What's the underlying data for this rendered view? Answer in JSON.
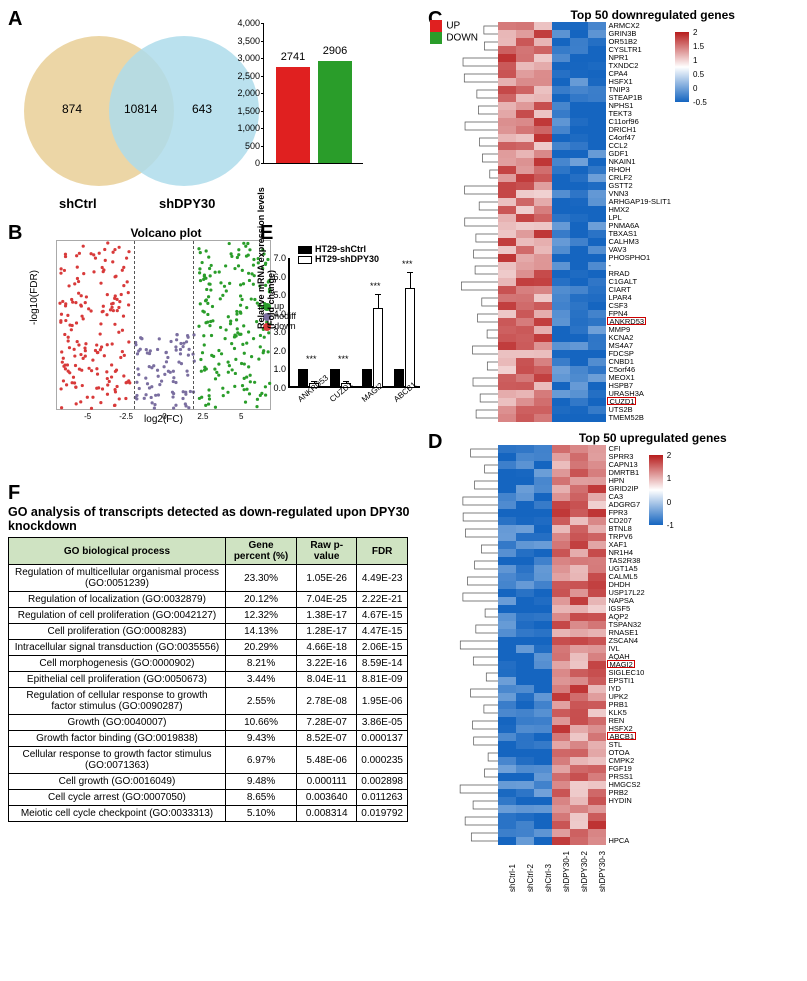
{
  "panelA": {
    "label": "A",
    "venn": {
      "left_only": 874,
      "overlap": 10814,
      "right_only": 643,
      "left_name": "shCtrl",
      "right_name": "shDPY30",
      "left_color": "#e9cf97",
      "right_color": "#aedceb"
    },
    "barchart": {
      "up_label": "UP",
      "down_label": "DOWN",
      "up_value": 2741,
      "down_value": 2906,
      "up_color": "#e02020",
      "down_color": "#2a9d2a",
      "yticks": [
        0,
        500,
        1000,
        1500,
        2000,
        2500,
        3000,
        3500,
        4000
      ],
      "ymax": 4000
    }
  },
  "panelB": {
    "label": "B",
    "title": "Volcano plot",
    "xlabel": "log2(FC)",
    "ylabel": "-log10(FDR)",
    "legend": {
      "up": "up",
      "nodiff": "nodiff",
      "down": "down"
    },
    "colors": {
      "up": "#2a9d2a",
      "nodiff": "#7b6fa0",
      "down": "#d83a3a"
    },
    "xlim": [
      -7,
      7
    ],
    "ylim": [
      0,
      300
    ],
    "fc_threshold": 1.0
  },
  "panelE": {
    "label": "E",
    "ylabel": "Relative mRNA expression levels\n(Fold change)",
    "legend": {
      "ctrl": "HT29-shCtrl",
      "sh": "HT29-shDPY30"
    },
    "genes": [
      "ANKRD53",
      "CUZD1",
      "MAGI2",
      "ABCB1"
    ],
    "ctrl_values": [
      1.0,
      1.0,
      1.0,
      1.0
    ],
    "sh_values": [
      0.25,
      0.25,
      4.3,
      5.4
    ],
    "sh_err": [
      0.08,
      0.08,
      0.7,
      0.8
    ],
    "stars": [
      "***",
      "***",
      "***",
      "***"
    ],
    "yticks": [
      0,
      1,
      2,
      3,
      4,
      5,
      6,
      7
    ],
    "ymax": 7.0
  },
  "panelC": {
    "label": "C",
    "title": "Top 50 downregulated genes",
    "samples": [
      "shCtrl-1",
      "shCtrl-2",
      "shCtrl-3",
      "shDPY30-1",
      "shDPY30-2",
      "shDPY30-3"
    ],
    "genes": [
      "ARMCX2",
      "GRIN3B",
      "OR51B2",
      "CYSLTR1",
      "NPR1",
      "TXNDC2",
      "CPA4",
      "HSFX1",
      "TNIP3",
      "STEAP1B",
      "NPHS1",
      "TEKT3",
      "C11orf96",
      "DRICH1",
      "C4orf47",
      "CCL2",
      "GDF1",
      "NKAIN1",
      "RHOH",
      "CRLF2",
      "GSTT2",
      "VNN3",
      "ARHGAP19-SLIT1",
      "HMX2",
      "LPL",
      "PNMA6A",
      "TBXAS1",
      "CALHM3",
      "VAV3",
      "PHOSPHO1",
      "-",
      "RRAD",
      "C1GALT",
      "CIART",
      "LPAR4",
      "CSF3",
      "FPN4",
      "ANKRD53",
      "MMP9",
      "KCNA2",
      "MS4A7",
      "FDCSP",
      "CNBD1",
      "C5orf46",
      "MEOX1",
      "HSPB7",
      "URASH3A",
      "CUZD1",
      "UTS2B",
      "TMEM52B"
    ],
    "boxed_genes": [
      "ANKRD53",
      "CUZD1"
    ],
    "colorbar": {
      "max": 2,
      "ticks": [
        2,
        1.5,
        1,
        0.5,
        0,
        -0.5
      ],
      "min_color": "#1565c0",
      "mid_color": "#ffffff",
      "max_color": "#b71c1c"
    }
  },
  "panelD": {
    "label": "D",
    "title": "Top 50 upregulated genes",
    "samples": [
      "shCtrl-1",
      "shCtrl-2",
      "shCtrl-3",
      "shDPY30-1",
      "shDPY30-2",
      "shDPY30-3"
    ],
    "genes": [
      "CFI",
      "SPRR3",
      "CAPN13",
      "DMRTB1",
      "HPN",
      "GRID2IP",
      "CA3",
      "ADGRG7",
      "FPR3",
      "CD207",
      "BTNL8",
      "TRPV6",
      "XAF1",
      "NR1H4",
      "TAS2R38",
      "UGT1A5",
      "CALML5",
      "DHDH",
      "USP17L22",
      "NAPSA",
      "IGSF5",
      "AQP2",
      "TSPAN32",
      "RNASE1",
      "ZSCAN4",
      "IVL",
      "AQAH",
      "MAGI2",
      "SIGLEC10",
      "EPSTI1",
      "IYD",
      "UPK2",
      "PRB1",
      "KLK5",
      "REN",
      "HSFX2",
      "ABCB1",
      "STL",
      "OTOA",
      "CMPK2",
      "FGF19",
      "PRSS1",
      "HMGCS2",
      "PRB2",
      "HYDIN",
      "",
      "",
      "",
      "",
      "HPCA"
    ],
    "boxed_genes": [
      "MAGI2",
      "ABCB1"
    ],
    "colorbar": {
      "max": 2,
      "ticks": [
        2,
        1,
        0,
        -1
      ],
      "min_color": "#1565c0",
      "mid_color": "#ffffff",
      "max_color": "#b71c1c"
    }
  },
  "panelF": {
    "label": "F",
    "title": "GO analysis of transcripts detected as down-regulated upon DPY30 knockdown",
    "columns": [
      "GO biological process",
      "Gene percent (%)",
      "Raw p-value",
      "FDR"
    ],
    "rows": [
      [
        "Regulation of multicellular organismal process (GO:0051239)",
        "23.30%",
        "1.05E-26",
        "4.49E-23"
      ],
      [
        "Regulation of localization (GO:0032879)",
        "20.12%",
        "7.04E-25",
        "2.22E-21"
      ],
      [
        "Regulation of cell proliferation (GO:0042127)",
        "12.32%",
        "1.38E-17",
        "4.67E-15"
      ],
      [
        "Cell proliferation (GO:0008283)",
        "14.13%",
        "1.28E-17",
        "4.47E-15"
      ],
      [
        "Intracellular signal transduction (GO:0035556)",
        "20.29%",
        "4.66E-18",
        "2.06E-15"
      ],
      [
        "Cell morphogenesis (GO:0000902)",
        "8.21%",
        "3.22E-16",
        "8.59E-14"
      ],
      [
        "Epithelial cell proliferation (GO:0050673)",
        "3.44%",
        "8.04E-11",
        "8.81E-09"
      ],
      [
        "Regulation of cellular response to growth factor stimulus (GO:0090287)",
        "2.55%",
        "2.78E-08",
        "1.95E-06"
      ],
      [
        "Growth (GO:0040007)",
        "10.66%",
        "7.28E-07",
        "3.86E-05"
      ],
      [
        "Growth factor binding (GO:0019838)",
        "9.43%",
        "8.52E-07",
        "0.000137"
      ],
      [
        "Cellular response to growth factor stimulus (GO:0071363)",
        "6.97%",
        "5.48E-06",
        "0.000235"
      ],
      [
        "Cell growth (GO:0016049)",
        "9.48%",
        "0.000111",
        "0.002898"
      ],
      [
        "Cell cycle arrest (GO:0007050)",
        "8.65%",
        "0.003640",
        "0.011263"
      ],
      [
        "Meiotic cell cycle checkpoint (GO:0033313)",
        "5.10%",
        "0.008314",
        "0.019792"
      ]
    ]
  }
}
